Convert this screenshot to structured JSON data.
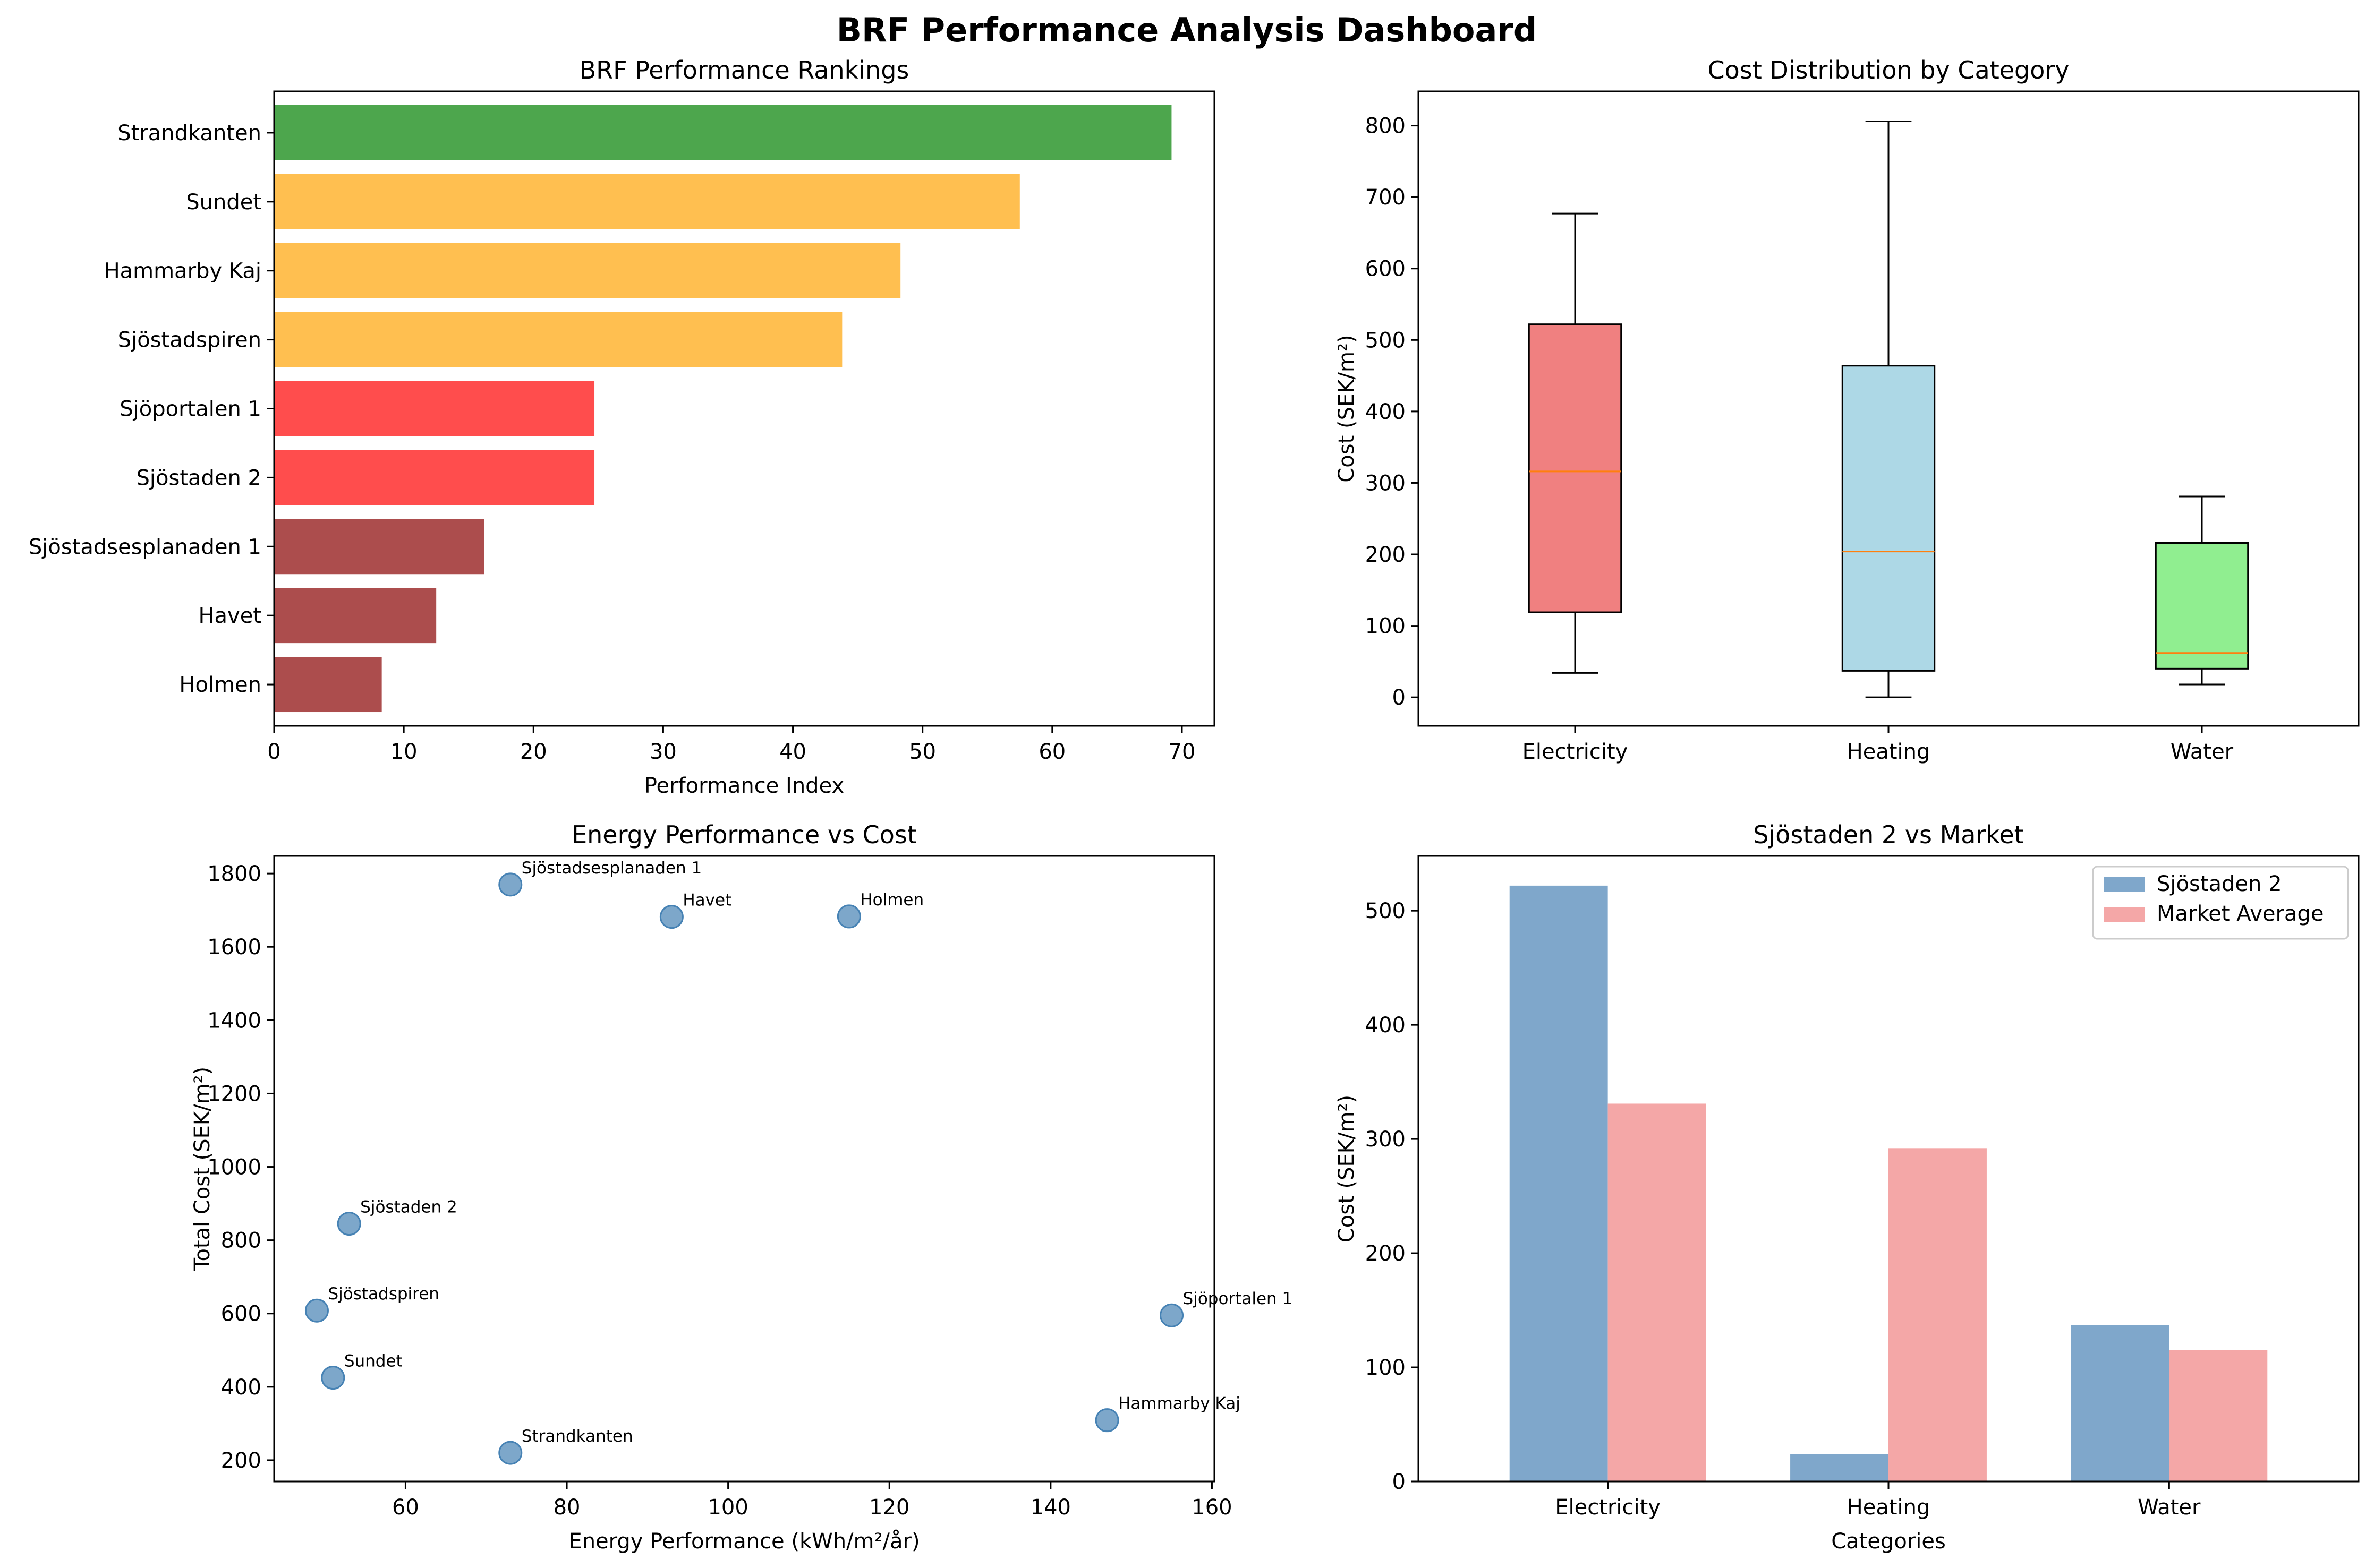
{
  "figure": {
    "title": "BRF Performance Analysis Dashboard"
  },
  "chart_data": [
    {
      "type": "bar",
      "orientation": "horizontal",
      "title": "BRF Performance Rankings",
      "xlabel": "Performance Index",
      "ylabel": "",
      "xlim": [
        0,
        72.5
      ],
      "xticks": [
        0,
        10,
        20,
        30,
        40,
        50,
        60,
        70
      ],
      "categories": [
        "Holmen",
        "Havet",
        "Sjöstadsesplanaden 1",
        "Sjöstaden 2",
        "Sjöportalen 1",
        "Sjöstadspiren",
        "Hammarby Kaj",
        "Sundet",
        "Strandkanten"
      ],
      "values": [
        8.3,
        12.5,
        16.2,
        24.7,
        24.7,
        43.8,
        48.3,
        57.5,
        69.2
      ],
      "colors": [
        "#ac4d4d",
        "#ac4d4d",
        "#ac4d4d",
        "#ff4d4d",
        "#ff4d4d",
        "#ffbf50",
        "#ffbf50",
        "#ffbf50",
        "#4da64d"
      ],
      "grid": false
    },
    {
      "type": "box",
      "title": "Cost Distribution by Category",
      "xlabel": "",
      "ylabel": "Cost (SEK/m²)",
      "ylim": [
        -40,
        848
      ],
      "yticks": [
        0,
        100,
        200,
        300,
        400,
        500,
        600,
        700,
        800
      ],
      "categories": [
        "Electricity",
        "Heating",
        "Water"
      ],
      "boxes": [
        {
          "whislo": 34,
          "q1": 119,
          "med": 316,
          "q3": 522,
          "whishi": 677,
          "color": "#f08080"
        },
        {
          "whislo": 0,
          "q1": 37,
          "med": 204,
          "q3": 464,
          "whishi": 806,
          "color": "#add8e6"
        },
        {
          "whislo": 18,
          "q1": 40,
          "med": 62,
          "q3": 216,
          "whishi": 281,
          "color": "#90ee90"
        }
      ],
      "median_color": "#ff7f0e",
      "grid": false
    },
    {
      "type": "scatter",
      "title": "Energy Performance vs Cost",
      "xlabel": "Energy Performance (kWh/m²/år)",
      "ylabel": "Total Cost (SEK/m²)",
      "xlim": [
        43.7,
        160.3
      ],
      "ylim": [
        142,
        1848
      ],
      "xticks": [
        60,
        80,
        100,
        120,
        140,
        160
      ],
      "yticks": [
        200,
        400,
        600,
        800,
        1000,
        1200,
        1400,
        1600,
        1800
      ],
      "point_color": "#4682b4",
      "points": [
        {
          "label": "Sjöstadsesplanaden 1",
          "x": 73,
          "y": 1770
        },
        {
          "label": "Havet",
          "x": 93,
          "y": 1682
        },
        {
          "label": "Holmen",
          "x": 115,
          "y": 1683
        },
        {
          "label": "Sjöstaden 2",
          "x": 53,
          "y": 845
        },
        {
          "label": "Sjöstadspiren",
          "x": 49,
          "y": 608
        },
        {
          "label": "Sundet",
          "x": 51,
          "y": 425
        },
        {
          "label": "Strandkanten",
          "x": 73,
          "y": 220
        },
        {
          "label": "Hammarby Kaj",
          "x": 147,
          "y": 309
        },
        {
          "label": "Sjöportalen 1",
          "x": 155,
          "y": 595
        }
      ],
      "grid": false
    },
    {
      "type": "bar",
      "orientation": "vertical",
      "title": "Sjöstaden 2 vs Market",
      "xlabel": "Categories",
      "ylabel": "Cost (SEK/m²)",
      "ylim": [
        0,
        548
      ],
      "yticks": [
        0,
        100,
        200,
        300,
        400,
        500
      ],
      "categories": [
        "Electricity",
        "Heating",
        "Water"
      ],
      "series": [
        {
          "name": "Sjöstaden 2",
          "values": [
            522,
            24,
            137
          ],
          "color": "#7fa7cb"
        },
        {
          "name": "Market Average",
          "values": [
            331,
            292,
            115
          ],
          "color": "#f4a7a7"
        }
      ],
      "legend": "upper right",
      "grid": false
    }
  ]
}
